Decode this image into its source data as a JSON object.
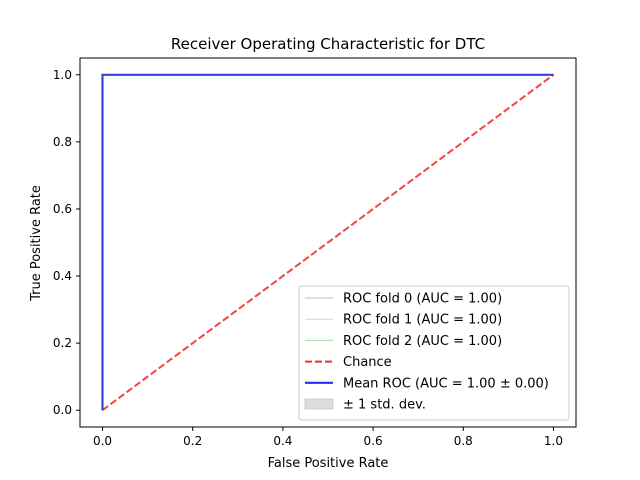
{
  "chart_data": {
    "type": "line",
    "title": "Receiver Operating Characteristic for DTC",
    "xlabel": "False Positive Rate",
    "ylabel": "True Positive Rate",
    "xlim": [
      -0.05,
      1.05
    ],
    "ylim": [
      -0.05,
      1.05
    ],
    "xticks": [
      0.0,
      0.2,
      0.4,
      0.6,
      0.8,
      1.0
    ],
    "yticks": [
      0.0,
      0.2,
      0.4,
      0.6,
      0.8,
      1.0
    ],
    "xtick_labels": [
      "0.0",
      "0.2",
      "0.4",
      "0.6",
      "0.8",
      "1.0"
    ],
    "ytick_labels": [
      "0.0",
      "0.2",
      "0.4",
      "0.6",
      "0.8",
      "1.0"
    ],
    "grid": false,
    "legend_position": "lower-right",
    "series": [
      {
        "name": "ROC fold 0 (AUC = 1.00)",
        "style": "solid-thin",
        "color": "#a6c8e8",
        "x": [
          0,
          0,
          1
        ],
        "y": [
          0,
          1,
          1
        ]
      },
      {
        "name": "ROC fold 1 (AUC = 1.00)",
        "style": "solid-thin",
        "color": "#f9cba1",
        "x": [
          0,
          0,
          1
        ],
        "y": [
          0,
          1,
          1
        ]
      },
      {
        "name": "ROC fold 2 (AUC = 1.00)",
        "style": "solid-thin",
        "color": "#a9dba9",
        "x": [
          0,
          0,
          1
        ],
        "y": [
          0,
          1,
          1
        ]
      },
      {
        "name": "Chance",
        "style": "dashed",
        "color": "#f03030",
        "x": [
          0,
          1
        ],
        "y": [
          0,
          1
        ]
      },
      {
        "name": "Mean ROC (AUC = 1.00 ± 0.00)",
        "style": "solid-thick",
        "color": "#2b2be8",
        "x": [
          0,
          0,
          1
        ],
        "y": [
          0,
          1,
          1
        ]
      },
      {
        "name": "± 1 std. dev.",
        "style": "band",
        "color": "#dddddd",
        "x": [
          0,
          1
        ],
        "y": [
          1,
          1
        ]
      }
    ]
  }
}
